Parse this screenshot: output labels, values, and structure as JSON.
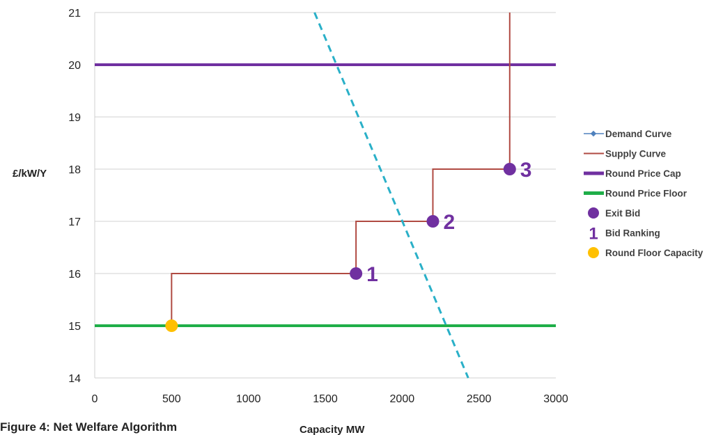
{
  "caption": "Figure 4: Net Welfare Algorithm",
  "chart_data": {
    "type": "line",
    "xlabel": "Capacity MW",
    "ylabel": "£/kW/Y",
    "xlim": [
      0,
      3000
    ],
    "ylim": [
      14,
      21
    ],
    "x_ticks": [
      "0",
      "500",
      "1000",
      "1500",
      "2000",
      "2500",
      "3000"
    ],
    "y_ticks": [
      "14",
      "15",
      "16",
      "17",
      "18",
      "19",
      "20",
      "21"
    ],
    "grid": "horizontal",
    "legend_position": "right",
    "colors": {
      "demand": "#2ab0c8",
      "supply": "#b04a42",
      "cap": "#7030a0",
      "floor": "#1fae48",
      "exit_bid": "#7030a0",
      "floor_capacity": "#ffc000",
      "grid": "#d0d0d0"
    },
    "series": [
      {
        "name": "Demand Curve",
        "style": "dashed",
        "points": [
          [
            1430,
            21
          ],
          [
            2430,
            14
          ]
        ]
      },
      {
        "name": "Supply Curve",
        "style": "step",
        "points": [
          [
            500,
            15
          ],
          [
            500,
            16
          ],
          [
            1700,
            16
          ],
          [
            1700,
            17
          ],
          [
            2200,
            17
          ],
          [
            2200,
            18
          ],
          [
            2700,
            18
          ],
          [
            2700,
            21
          ]
        ]
      },
      {
        "name": "Round Price Cap",
        "style": "hline",
        "y": 20
      },
      {
        "name": "Round Price Floor",
        "style": "hline",
        "y": 15
      },
      {
        "name": "Exit Bid",
        "style": "markers",
        "points": [
          [
            1700,
            16
          ],
          [
            2200,
            17
          ],
          [
            2700,
            18
          ]
        ]
      },
      {
        "name": "Bid Ranking",
        "style": "labels",
        "labels": [
          "1",
          "2",
          "3"
        ]
      },
      {
        "name": "Round Floor Capacity",
        "style": "markers",
        "points": [
          [
            500,
            15
          ]
        ]
      }
    ],
    "legend": [
      {
        "label": "Demand Curve",
        "symbol": "line-marker",
        "color": "#4f81bd"
      },
      {
        "label": "Supply Curve",
        "symbol": "line",
        "color": "#b04a42"
      },
      {
        "label": "Round Price Cap",
        "symbol": "thick-line",
        "color": "#7030a0"
      },
      {
        "label": "Round Price Floor",
        "symbol": "thick-line",
        "color": "#1fae48"
      },
      {
        "label": "Exit Bid",
        "symbol": "dot",
        "color": "#7030a0"
      },
      {
        "label": "Bid Ranking",
        "symbol": "text",
        "text": "1",
        "color": "#7030a0"
      },
      {
        "label": "Round Floor Capacity",
        "symbol": "dot",
        "color": "#ffc000"
      }
    ]
  }
}
